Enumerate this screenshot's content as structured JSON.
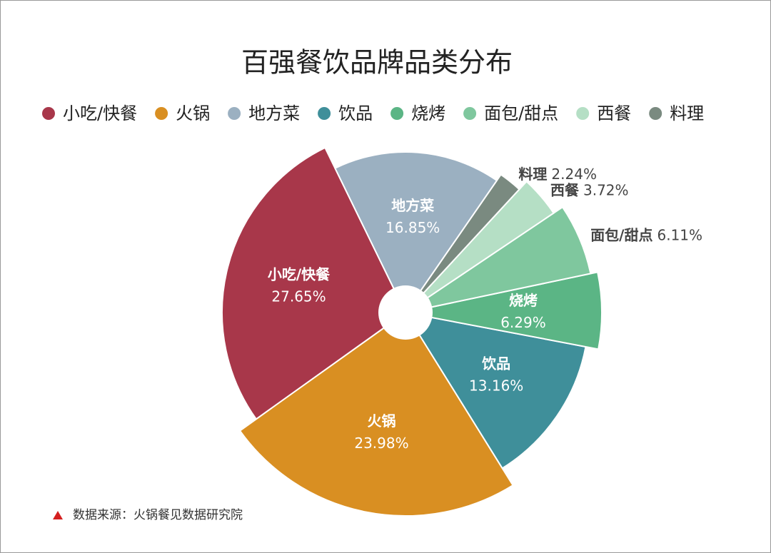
{
  "chart_data": {
    "type": "pie",
    "title": "百强餐饮品牌品类分布",
    "categories": [
      "小吃/快餐",
      "火锅",
      "地方菜",
      "饮品",
      "烧烤",
      "面包/甜点",
      "西餐",
      "料理"
    ],
    "values": [
      27.65,
      23.98,
      16.85,
      13.16,
      6.29,
      6.11,
      3.72,
      2.24
    ],
    "value_labels": [
      "27.65%",
      "23.98%",
      "16.85%",
      "13.16%",
      "6.29%",
      "6.11%",
      "3.72%",
      "2.24%"
    ],
    "colors": [
      "#a8374a",
      "#d98f22",
      "#9bb0c1",
      "#3f8f9a",
      "#5bb585",
      "#7fc79e",
      "#b5dfc5",
      "#7a8a80"
    ],
    "legend": "top",
    "source": "数据来源：火锅餐见数据研究院"
  }
}
